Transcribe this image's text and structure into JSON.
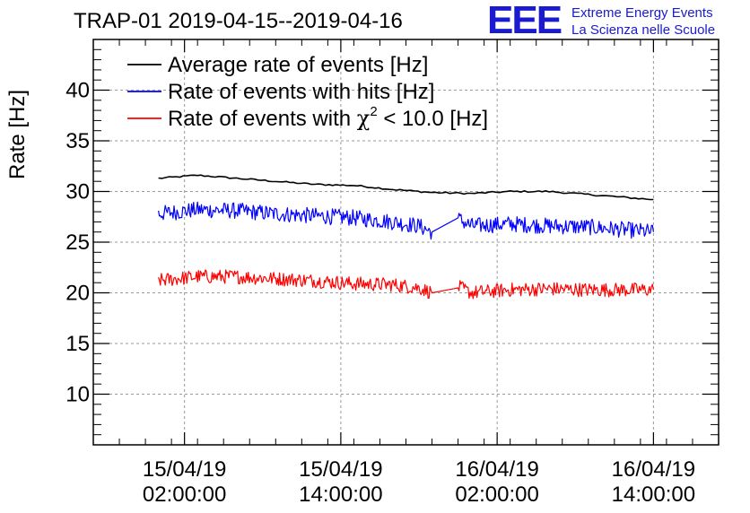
{
  "chart_data": {
    "type": "line",
    "title": "TRAP-01 2019-04-15--2019-04-16",
    "ylabel": "Rate [Hz]",
    "xlabel": "",
    "ylim": [
      5,
      45
    ],
    "xlim": [
      "2019-04-14 19:00:00",
      "2019-04-16 19:00:00"
    ],
    "grid": true,
    "legend_position": "top-left",
    "y_ticks": [
      "10",
      "15",
      "20",
      "25",
      "30",
      "35",
      "40"
    ],
    "x_ticks": [
      {
        "time": "2019-04-15 02:00:00",
        "label_date": "15/04/19",
        "label_time": "02:00:00"
      },
      {
        "time": "2019-04-15 14:00:00",
        "label_date": "15/04/19",
        "label_time": "14:00:00"
      },
      {
        "time": "2019-04-16 02:00:00",
        "label_date": "16/04/19",
        "label_time": "02:00:00"
      },
      {
        "time": "2019-04-16 14:00:00",
        "label_date": "16/04/19",
        "label_time": "14:00:00"
      }
    ],
    "series": [
      {
        "name": "Average rate of events [Hz]",
        "color": "#000000",
        "x": [
          "2019-04-15 00:00",
          "2019-04-15 03:00",
          "2019-04-15 06:00",
          "2019-04-15 09:00",
          "2019-04-15 12:00",
          "2019-04-15 15:00",
          "2019-04-15 18:00",
          "2019-04-15 21:00",
          "2019-04-16 00:00",
          "2019-04-16 03:00",
          "2019-04-16 06:00",
          "2019-04-16 09:00",
          "2019-04-16 12:00",
          "2019-04-16 14:00"
        ],
        "y": [
          31.3,
          31.6,
          31.3,
          31.0,
          30.7,
          30.6,
          30.2,
          29.9,
          29.8,
          30.0,
          30.0,
          29.7,
          29.4,
          29.2
        ]
      },
      {
        "name": "Rate of events with hits [Hz]",
        "color": "#0000ff",
        "x": [
          "2019-04-15 00:00",
          "2019-04-15 03:00",
          "2019-04-15 06:00",
          "2019-04-15 09:00",
          "2019-04-15 12:00",
          "2019-04-15 15:00",
          "2019-04-15 18:00",
          "2019-04-15 20:00",
          "2019-04-15 21:00",
          "2019-04-15 23:00",
          "2019-04-16 00:00",
          "2019-04-16 03:00",
          "2019-04-16 06:00",
          "2019-04-16 09:00",
          "2019-04-16 12:00",
          "2019-04-16 14:00"
        ],
        "y": [
          27.8,
          28.2,
          28.1,
          27.8,
          27.6,
          27.4,
          27.0,
          26.6,
          26.0,
          27.3,
          26.6,
          26.8,
          26.6,
          26.5,
          26.2,
          26.0
        ]
      },
      {
        "name": "Rate of events with χ² < 10.0 [Hz]",
        "color": "#ff0000",
        "x": [
          "2019-04-15 00:00",
          "2019-04-15 03:00",
          "2019-04-15 06:00",
          "2019-04-15 09:00",
          "2019-04-15 12:00",
          "2019-04-15 15:00",
          "2019-04-15 18:00",
          "2019-04-15 20:00",
          "2019-04-15 21:00",
          "2019-04-15 23:00",
          "2019-04-16 00:00",
          "2019-04-16 03:00",
          "2019-04-16 06:00",
          "2019-04-16 09:00",
          "2019-04-16 12:00",
          "2019-04-16 14:00"
        ],
        "y": [
          21.2,
          21.6,
          21.6,
          21.4,
          21.2,
          20.9,
          20.8,
          20.5,
          20.0,
          20.6,
          20.0,
          20.3,
          20.4,
          20.3,
          20.3,
          20.3
        ]
      }
    ],
    "legend_entries": [
      {
        "text": "Average rate of events [Hz]",
        "color": "#000000"
      },
      {
        "text": "Rate of events with hits [Hz]",
        "color": "#0000ff"
      },
      {
        "text_before": "Rate of events with ",
        "symbol": "χ",
        "sup": "2",
        "text_after": " < 10.0 [Hz]",
        "color": "#ff0000"
      }
    ]
  },
  "logo": {
    "mark": "EEE",
    "line1": "Extreme Energy Events",
    "line2": "La Scienza nelle Scuole",
    "color": "#1a1ad0"
  }
}
